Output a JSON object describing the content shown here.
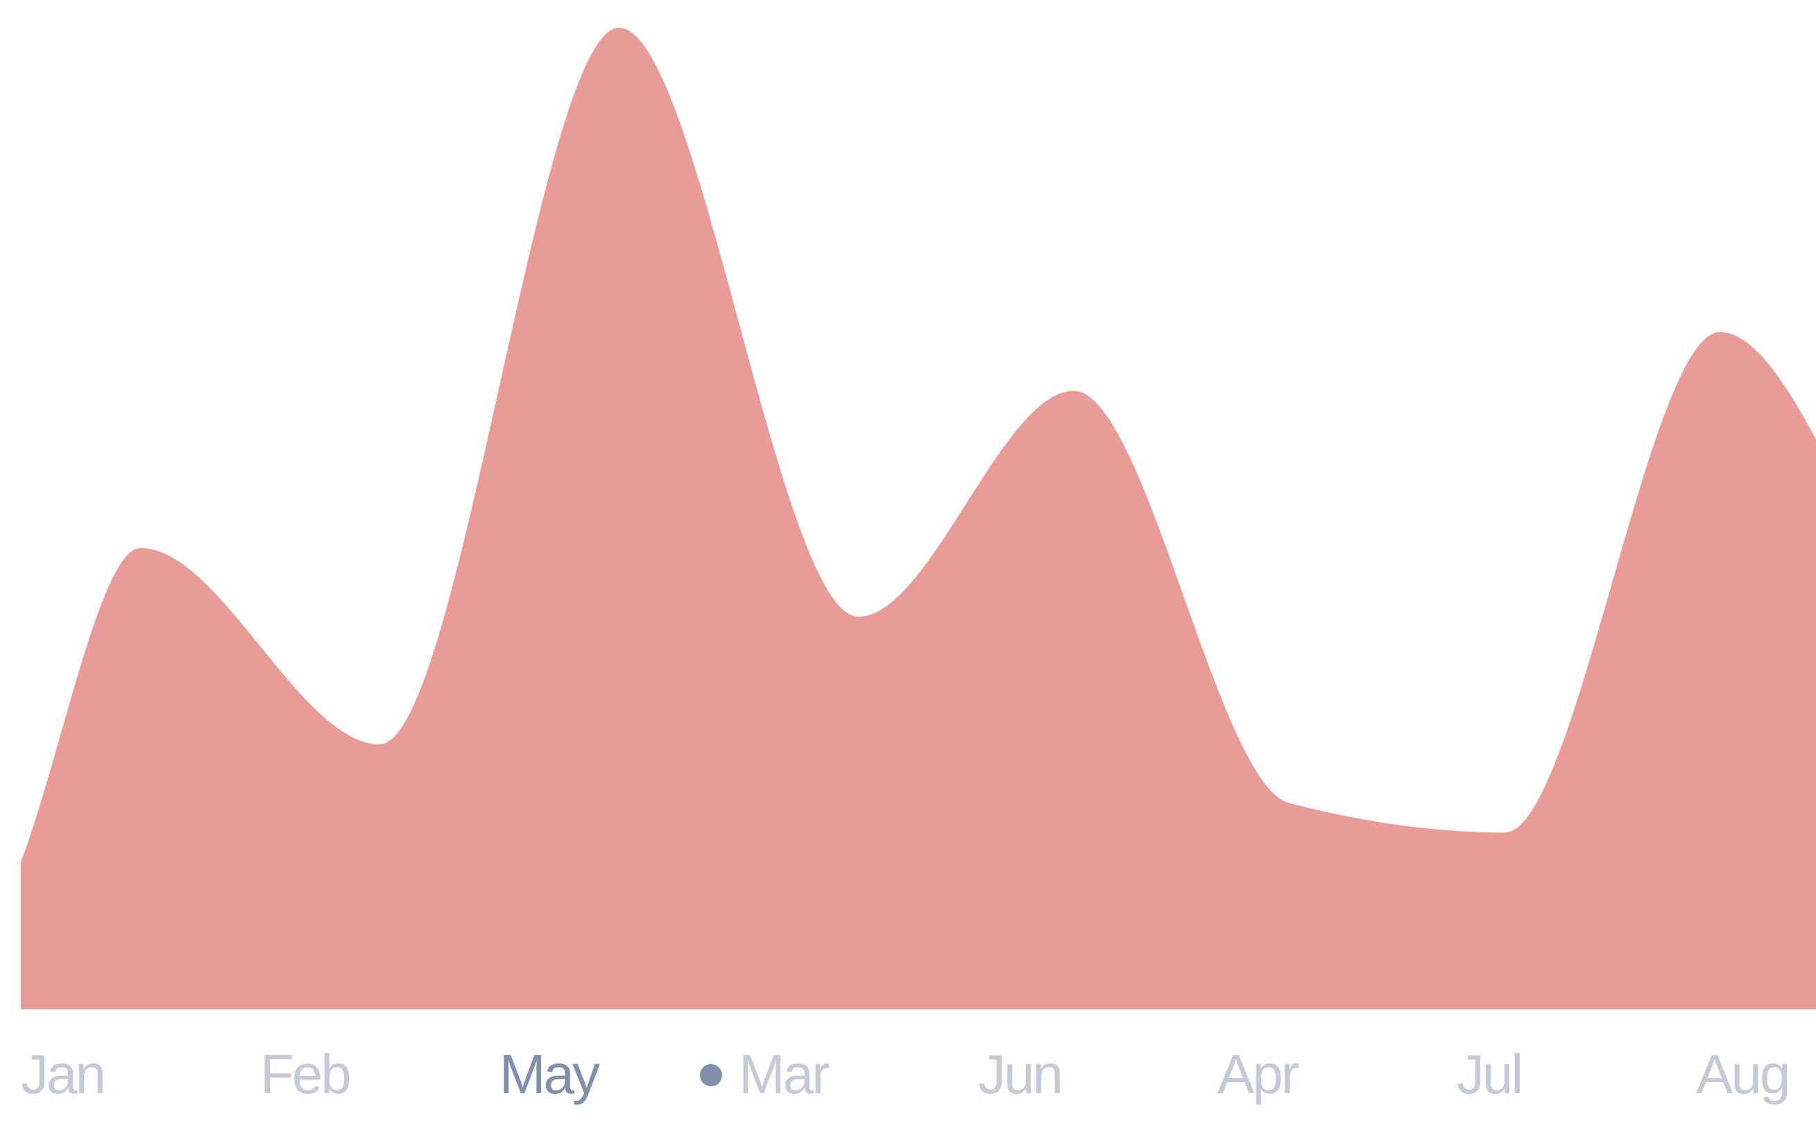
{
  "chart_data": {
    "type": "area",
    "title": "",
    "xlabel": "",
    "ylabel": "",
    "categories": [
      "Jan",
      "Feb",
      "May",
      "Mar",
      "Jun",
      "Apr",
      "Jul",
      "Aug"
    ],
    "active_category": "May",
    "marker_category": "Mar",
    "x_axis": {
      "tick_labels": [
        "Jan",
        "Feb",
        "May",
        "Mar",
        "Jun",
        "Apr",
        "Jul",
        "Aug"
      ]
    },
    "y_axis_visible": false,
    "grid": false,
    "legend": "none",
    "series": [
      {
        "x": [
          0,
          0.5,
          1.5,
          2.5,
          3.5,
          4.4,
          5.3,
          6.2,
          7.1,
          7.9
        ],
        "values": [
          15,
          47,
          27,
          100,
          40,
          63,
          21,
          18,
          69,
          40
        ]
      }
    ],
    "ylim": [
      0,
      100
    ],
    "colors": {
      "area_fill": "#e99b98",
      "tick_label": "#c4cad6",
      "active_tick_label": "#7f90aa",
      "marker": "#7f90aa"
    }
  }
}
